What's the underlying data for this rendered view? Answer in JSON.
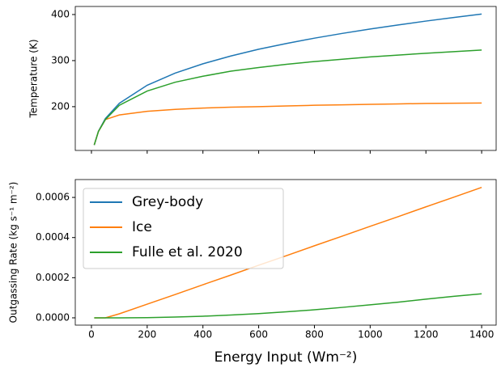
{
  "chart_data": [
    {
      "type": "line",
      "ylabel": "Temperature (K)",
      "x": [
        10,
        25,
        50,
        100,
        200,
        300,
        400,
        500,
        600,
        700,
        800,
        900,
        1000,
        1100,
        1200,
        1300,
        1400
      ],
      "series": [
        {
          "name": "Grey-body",
          "color": "#1f77b4",
          "values": [
            116.6,
            146.6,
            174.3,
            207.3,
            246.5,
            272.8,
            293.1,
            310.0,
            324.6,
            337.2,
            348.7,
            359.0,
            368.6,
            377.4,
            385.8,
            393.6,
            401
          ]
        },
        {
          "name": "Ice",
          "color": "#ff7f0e",
          "values": [
            117,
            146,
            172,
            182,
            190,
            194,
            197,
            199,
            200,
            201.5,
            203,
            204,
            205,
            206,
            207,
            207.5,
            208
          ]
        },
        {
          "name": "Fulle et al. 2020",
          "color": "#2ca02c",
          "values": [
            117,
            146,
            172,
            203,
            234,
            253,
            266,
            277,
            285,
            292,
            298,
            303,
            308,
            312,
            316,
            319.5,
            323
          ]
        }
      ],
      "xlim": [
        -58,
        1452
      ],
      "xticks": [
        0,
        200,
        400,
        600,
        800,
        1000,
        1200,
        1400
      ],
      "ylim": [
        105,
        417.5
      ],
      "yticks": [
        200,
        300,
        400
      ]
    },
    {
      "type": "line",
      "xlabel": "Energy Input (Wm⁻²)",
      "ylabel": "Outgassing Rate (kg s⁻¹ m⁻²)",
      "x": [
        10,
        25,
        50,
        100,
        200,
        300,
        400,
        500,
        600,
        700,
        800,
        900,
        1000,
        1100,
        1200,
        1300,
        1400
      ],
      "series": [
        {
          "name": "Grey-body",
          "color": "#1f77b4",
          "values": [
            null,
            null,
            null,
            null,
            null,
            null,
            null,
            null,
            null,
            null,
            null,
            null,
            null,
            null,
            null,
            null,
            null
          ]
        },
        {
          "name": "Ice",
          "color": "#ff7f0e",
          "values": [
            0,
            0,
            0,
            2e-05,
            6.8e-05,
            0.000116,
            0.000165,
            0.000213,
            0.000262,
            0.00031,
            0.000359,
            0.000407,
            0.000456,
            0.000504,
            0.000553,
            0.000601,
            0.00065
          ]
        },
        {
          "name": "Fulle et al. 2020",
          "color": "#2ca02c",
          "values": [
            0,
            0,
            0,
            0,
            1e-06,
            4e-06,
            8e-06,
            1.4e-05,
            2.1e-05,
            3e-05,
            4e-05,
            5.2e-05,
            6.5e-05,
            7.8e-05,
            9.3e-05,
            0.000107,
            0.00012
          ]
        }
      ],
      "xlim": [
        -58,
        1452
      ],
      "xticks": [
        0,
        200,
        400,
        600,
        800,
        1000,
        1200,
        1400
      ],
      "ylim": [
        -3.64e-05,
        0.000689
      ],
      "yticks": [
        {
          "value": 0,
          "label": "0.0000"
        },
        {
          "value": 0.0002,
          "label": "0.0002"
        },
        {
          "value": 0.0004,
          "label": "0.0004"
        },
        {
          "value": 0.0006,
          "label": "0.0006"
        }
      ],
      "legend": "upper left"
    }
  ]
}
